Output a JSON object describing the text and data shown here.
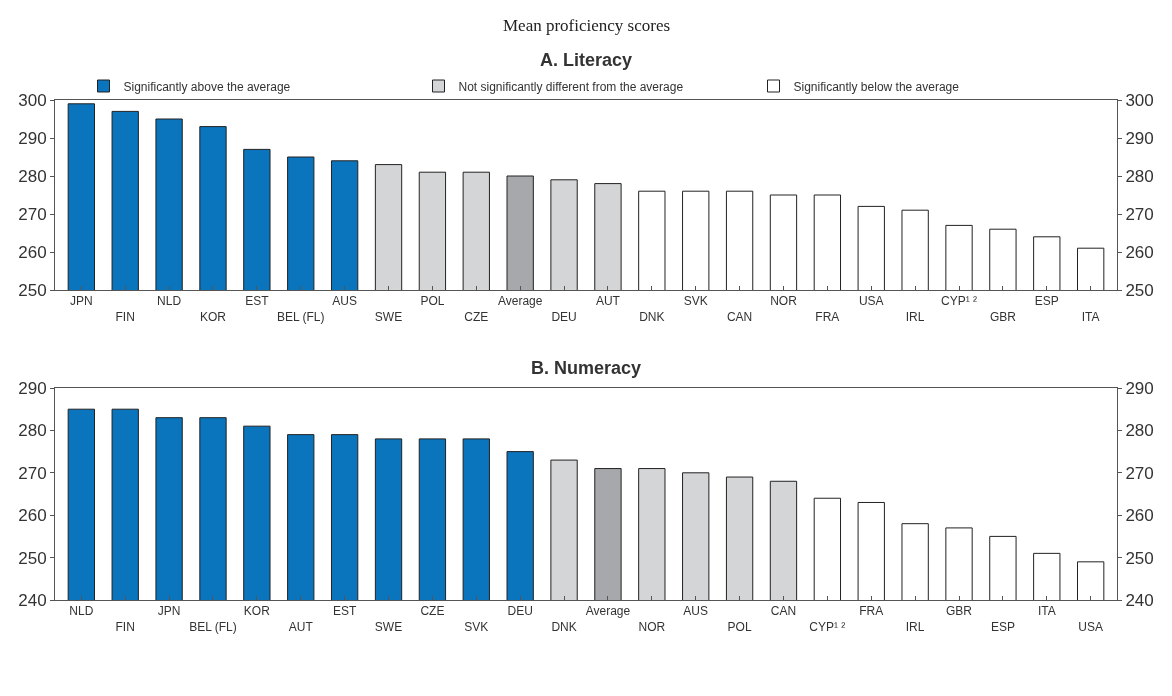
{
  "chart_data": [
    {
      "type": "bar",
      "title": "A. Literacy",
      "subtitle": "Mean proficiency scores",
      "categories": [
        "JPN",
        "FIN",
        "NLD",
        "KOR",
        "EST",
        "BEL (FL)",
        "AUS",
        "SWE",
        "POL",
        "CZE",
        "Average",
        "DEU",
        "AUT",
        "DNK",
        "SVK",
        "CAN",
        "NOR",
        "FRA",
        "USA",
        "IRL",
        "CYP¹ ²",
        "GBR",
        "ESP",
        "ITA"
      ],
      "series": [
        {
          "name": "Significantly above the average",
          "color": "#0a74bc",
          "values": [
            299,
            297,
            295,
            293,
            287,
            285,
            284,
            null,
            null,
            null,
            null,
            null,
            null,
            null,
            null,
            null,
            null,
            null,
            null,
            null,
            null,
            null,
            null,
            null
          ]
        },
        {
          "name": "Not significantly different from the average",
          "color": "#d4d5d7",
          "values": [
            null,
            null,
            null,
            null,
            null,
            null,
            null,
            283,
            281,
            281,
            null,
            279,
            278,
            null,
            null,
            null,
            null,
            null,
            null,
            null,
            null,
            null,
            null,
            null
          ]
        },
        {
          "name": "Significantly below the average",
          "color": "#ffffff",
          "values": [
            null,
            null,
            null,
            null,
            null,
            null,
            null,
            null,
            null,
            null,
            null,
            null,
            null,
            276,
            276,
            276,
            275,
            275,
            272,
            271,
            267,
            266,
            264,
            261
          ]
        },
        {
          "color": "#a7a8ab",
          "values": [
            null,
            null,
            null,
            null,
            null,
            null,
            null,
            null,
            null,
            null,
            280,
            null,
            null,
            null,
            null,
            null,
            null,
            null,
            null,
            null,
            null,
            null,
            null,
            null
          ]
        }
      ],
      "ylim": [
        250,
        300
      ],
      "yticks": [
        250,
        260,
        270,
        280,
        290,
        300
      ],
      "y2lim": [
        250,
        300
      ],
      "y2ticks": [
        250,
        260,
        270,
        280,
        290,
        300
      ],
      "legend": "top"
    },
    {
      "type": "bar",
      "title": "B. Numeracy",
      "categories": [
        "NLD",
        "FIN",
        "JPN",
        "BEL (FL)",
        "KOR",
        "AUT",
        "EST",
        "SWE",
        "CZE",
        "SVK",
        "DEU",
        "DNK",
        "Average",
        "NOR",
        "AUS",
        "POL",
        "CAN",
        "CYP¹ ²",
        "FRA",
        "IRL",
        "GBR",
        "ESP",
        "ITA",
        "USA"
      ],
      "series": [
        {
          "color": "#0a74bc",
          "values": [
            285,
            285,
            283,
            283,
            281,
            279,
            279,
            278,
            278,
            278,
            275,
            null,
            null,
            null,
            null,
            null,
            null,
            null,
            null,
            null,
            null,
            null,
            null,
            null
          ]
        },
        {
          "color": "#d4d5d7",
          "values": [
            null,
            null,
            null,
            null,
            null,
            null,
            null,
            null,
            null,
            null,
            null,
            273,
            null,
            271,
            270,
            269,
            268,
            null,
            null,
            null,
            null,
            null,
            null,
            null
          ]
        },
        {
          "color": "#ffffff",
          "values": [
            null,
            null,
            null,
            null,
            null,
            null,
            null,
            null,
            null,
            null,
            null,
            null,
            null,
            null,
            null,
            null,
            null,
            264,
            263,
            258,
            257,
            255,
            251,
            249
          ]
        },
        {
          "color": "#a7a8ab",
          "values": [
            null,
            null,
            null,
            null,
            null,
            null,
            null,
            null,
            null,
            null,
            null,
            null,
            271,
            null,
            null,
            null,
            null,
            null,
            null,
            null,
            null,
            null,
            null,
            null
          ]
        }
      ],
      "ylim": [
        240,
        290
      ],
      "yticks": [
        240,
        250,
        260,
        270,
        280,
        290
      ],
      "y2lim": [
        240,
        290
      ],
      "y2ticks": [
        240,
        250,
        260,
        270,
        280,
        290
      ],
      "legend": false
    }
  ]
}
